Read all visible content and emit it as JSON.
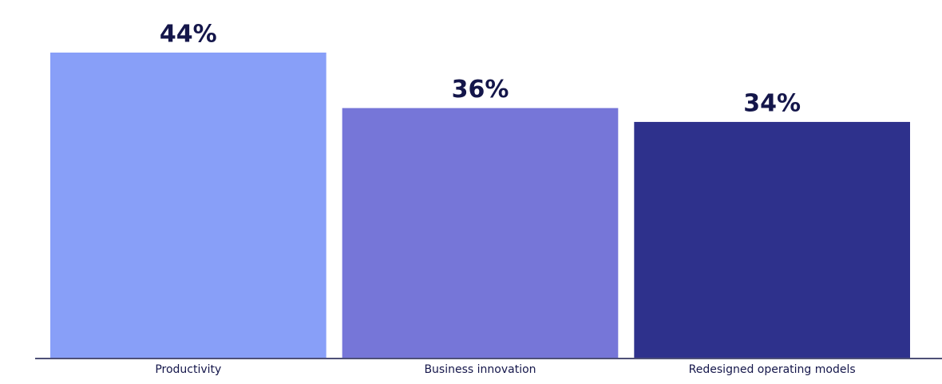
{
  "chart_data": {
    "type": "bar",
    "categories": [
      "Productivity",
      "Business innovation",
      "Redesigned operating models"
    ],
    "values": [
      44,
      36,
      34
    ],
    "value_labels": [
      "44%",
      "36%",
      "34%"
    ],
    "colors": [
      "#889ff8",
      "#7676d8",
      "#2e318c"
    ]
  }
}
